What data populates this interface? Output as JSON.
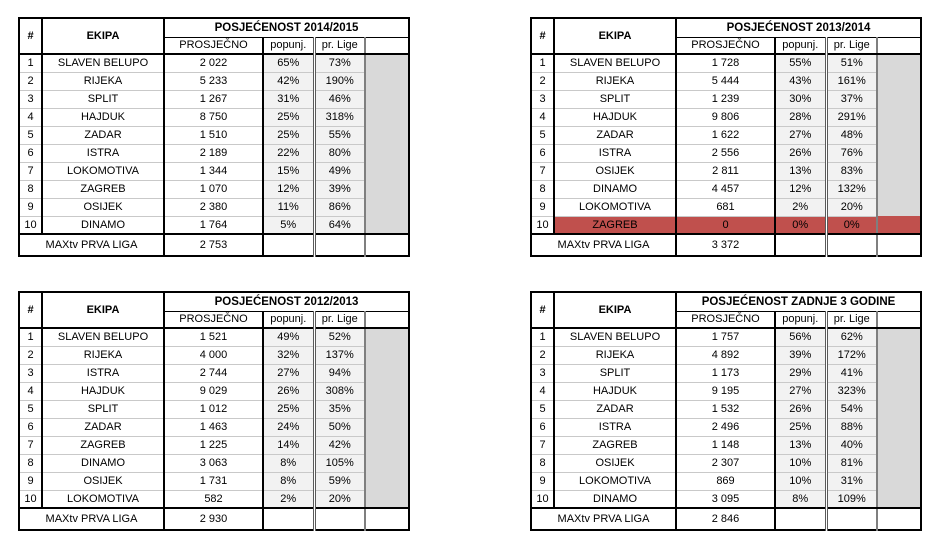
{
  "headers": {
    "rank": "#",
    "team": "EKIPA",
    "average": "PROSJEČNO",
    "occupancy": "popunj.",
    "league_avg": "pr. Lige"
  },
  "footer_label": "MAXtv PRVA LIGA",
  "colors": {
    "highlight_row": "#C0504D",
    "percent_columns_bg": "#F2F2F2",
    "empty_column_bg": "#D9D9D9",
    "border": "#000000"
  },
  "tables": [
    {
      "id": "2014-2015",
      "title": "POSJEĆENOST 2014/2015",
      "league_average": "2 753",
      "rows": [
        {
          "rank": "1",
          "team": "SLAVEN BELUPO",
          "average": "2 022",
          "occupancy": "65%",
          "league_avg": "73%"
        },
        {
          "rank": "2",
          "team": "RIJEKA",
          "average": "5 233",
          "occupancy": "42%",
          "league_avg": "190%"
        },
        {
          "rank": "3",
          "team": "SPLIT",
          "average": "1 267",
          "occupancy": "31%",
          "league_avg": "46%"
        },
        {
          "rank": "4",
          "team": "HAJDUK",
          "average": "8 750",
          "occupancy": "25%",
          "league_avg": "318%"
        },
        {
          "rank": "5",
          "team": "ZADAR",
          "average": "1 510",
          "occupancy": "25%",
          "league_avg": "55%"
        },
        {
          "rank": "6",
          "team": "ISTRA",
          "average": "2 189",
          "occupancy": "22%",
          "league_avg": "80%"
        },
        {
          "rank": "7",
          "team": "LOKOMOTIVA",
          "average": "1 344",
          "occupancy": "15%",
          "league_avg": "49%"
        },
        {
          "rank": "8",
          "team": "ZAGREB",
          "average": "1 070",
          "occupancy": "12%",
          "league_avg": "39%"
        },
        {
          "rank": "9",
          "team": "OSIJEK",
          "average": "2 380",
          "occupancy": "11%",
          "league_avg": "86%"
        },
        {
          "rank": "10",
          "team": "DINAMO",
          "average": "1 764",
          "occupancy": "5%",
          "league_avg": "64%"
        }
      ]
    },
    {
      "id": "2013-2014",
      "title": "POSJEĆENOST 2013/2014",
      "league_average": "3 372",
      "rows": [
        {
          "rank": "1",
          "team": "SLAVEN BELUPO",
          "average": "1 728",
          "occupancy": "55%",
          "league_avg": "51%"
        },
        {
          "rank": "2",
          "team": "RIJEKA",
          "average": "5 444",
          "occupancy": "43%",
          "league_avg": "161%"
        },
        {
          "rank": "3",
          "team": "SPLIT",
          "average": "1 239",
          "occupancy": "30%",
          "league_avg": "37%"
        },
        {
          "rank": "4",
          "team": "HAJDUK",
          "average": "9 806",
          "occupancy": "28%",
          "league_avg": "291%"
        },
        {
          "rank": "5",
          "team": "ZADAR",
          "average": "1 622",
          "occupancy": "27%",
          "league_avg": "48%"
        },
        {
          "rank": "6",
          "team": "ISTRA",
          "average": "2 556",
          "occupancy": "26%",
          "league_avg": "76%"
        },
        {
          "rank": "7",
          "team": "OSIJEK",
          "average": "2 811",
          "occupancy": "13%",
          "league_avg": "83%"
        },
        {
          "rank": "8",
          "team": "DINAMO",
          "average": "4 457",
          "occupancy": "12%",
          "league_avg": "132%"
        },
        {
          "rank": "9",
          "team": "LOKOMOTIVA",
          "average": "681",
          "occupancy": "2%",
          "league_avg": "20%"
        },
        {
          "rank": "10",
          "team": "ZAGREB",
          "average": "0",
          "occupancy": "0%",
          "league_avg": "0%",
          "highlight": true
        }
      ]
    },
    {
      "id": "2012-2013",
      "title": "POSJEĆENOST 2012/2013",
      "league_average": "2 930",
      "rows": [
        {
          "rank": "1",
          "team": "SLAVEN BELUPO",
          "average": "1 521",
          "occupancy": "49%",
          "league_avg": "52%"
        },
        {
          "rank": "2",
          "team": "RIJEKA",
          "average": "4 000",
          "occupancy": "32%",
          "league_avg": "137%"
        },
        {
          "rank": "3",
          "team": "ISTRA",
          "average": "2 744",
          "occupancy": "27%",
          "league_avg": "94%"
        },
        {
          "rank": "4",
          "team": "HAJDUK",
          "average": "9 029",
          "occupancy": "26%",
          "league_avg": "308%"
        },
        {
          "rank": "5",
          "team": "SPLIT",
          "average": "1 012",
          "occupancy": "25%",
          "league_avg": "35%"
        },
        {
          "rank": "6",
          "team": "ZADAR",
          "average": "1 463",
          "occupancy": "24%",
          "league_avg": "50%"
        },
        {
          "rank": "7",
          "team": "ZAGREB",
          "average": "1 225",
          "occupancy": "14%",
          "league_avg": "42%"
        },
        {
          "rank": "8",
          "team": "DINAMO",
          "average": "3 063",
          "occupancy": "8%",
          "league_avg": "105%"
        },
        {
          "rank": "9",
          "team": "OSIJEK",
          "average": "1 731",
          "occupancy": "8%",
          "league_avg": "59%"
        },
        {
          "rank": "10",
          "team": "LOKOMOTIVA",
          "average": "582",
          "occupancy": "2%",
          "league_avg": "20%"
        }
      ]
    },
    {
      "id": "zadnje-3-godine",
      "title": "POSJEĆENOST ZADNJE 3 GODINE",
      "league_average": "2 846",
      "rows": [
        {
          "rank": "1",
          "team": "SLAVEN BELUPO",
          "average": "1 757",
          "occupancy": "56%",
          "league_avg": "62%"
        },
        {
          "rank": "2",
          "team": "RIJEKA",
          "average": "4 892",
          "occupancy": "39%",
          "league_avg": "172%"
        },
        {
          "rank": "3",
          "team": "SPLIT",
          "average": "1 173",
          "occupancy": "29%",
          "league_avg": "41%"
        },
        {
          "rank": "4",
          "team": "HAJDUK",
          "average": "9 195",
          "occupancy": "27%",
          "league_avg": "323%"
        },
        {
          "rank": "5",
          "team": "ZADAR",
          "average": "1 532",
          "occupancy": "26%",
          "league_avg": "54%"
        },
        {
          "rank": "6",
          "team": "ISTRA",
          "average": "2 496",
          "occupancy": "25%",
          "league_avg": "88%"
        },
        {
          "rank": "7",
          "team": "ZAGREB",
          "average": "1 148",
          "occupancy": "13%",
          "league_avg": "40%"
        },
        {
          "rank": "8",
          "team": "OSIJEK",
          "average": "2 307",
          "occupancy": "10%",
          "league_avg": "81%"
        },
        {
          "rank": "9",
          "team": "LOKOMOTIVA",
          "average": "869",
          "occupancy": "10%",
          "league_avg": "31%"
        },
        {
          "rank": "10",
          "team": "DINAMO",
          "average": "3 095",
          "occupancy": "8%",
          "league_avg": "109%"
        }
      ]
    }
  ]
}
